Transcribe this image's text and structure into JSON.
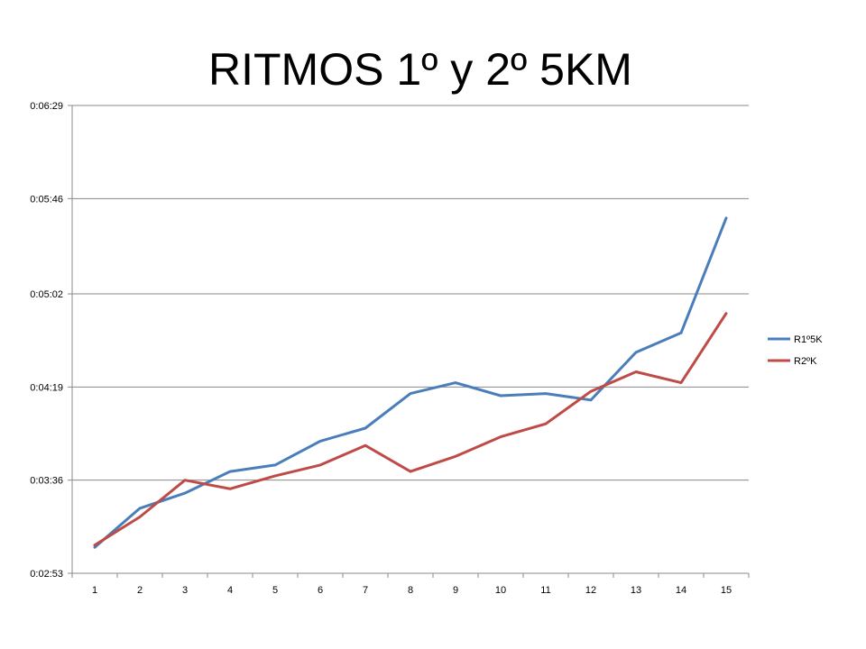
{
  "chart_data": {
    "type": "line",
    "title": "RITMOS 1º y 2º 5KM",
    "xlabel": "",
    "ylabel": "",
    "categories": [
      "1",
      "2",
      "3",
      "4",
      "5",
      "6",
      "7",
      "8",
      "9",
      "10",
      "11",
      "12",
      "13",
      "14",
      "15"
    ],
    "y_ticks": [
      "0:02:53",
      "0:03:36",
      "0:04:19",
      "0:05:02",
      "0:05:46",
      "0:06:29"
    ],
    "ylim_seconds": [
      173,
      389
    ],
    "grid": true,
    "legend_position": "right",
    "series": [
      {
        "name": "R1º5K",
        "color": "#4a7ebb",
        "values_seconds": [
          185,
          203,
          210,
          220,
          223,
          234,
          240,
          256,
          261,
          255,
          256,
          253,
          275,
          284,
          337
        ]
      },
      {
        "name": "R2ºK",
        "color": "#be4b48",
        "values_seconds": [
          186,
          199,
          216,
          212,
          218,
          223,
          232,
          220,
          227,
          236,
          242,
          257,
          266,
          261,
          293
        ]
      }
    ]
  }
}
